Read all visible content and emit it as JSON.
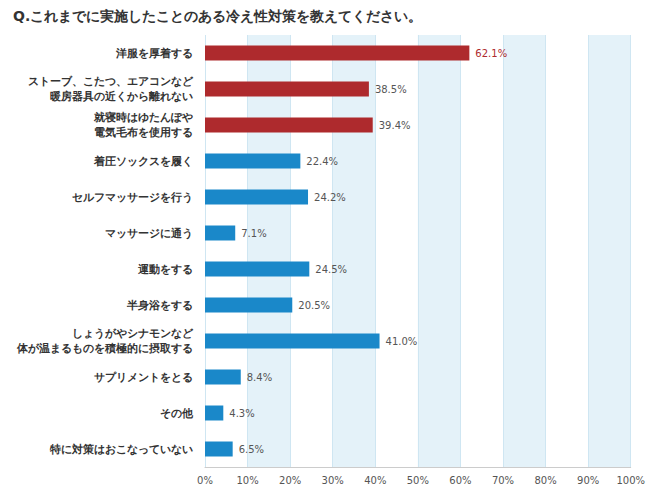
{
  "chart_data": {
    "type": "bar",
    "orientation": "horizontal",
    "title": "Q.これまでに実施したことのある冷え性対策を教えてください。",
    "categories": [
      "洋服を厚着する",
      "ストーブ、こたつ、エアコンなど\n暖房器具の近くから離れない",
      "就寝時はゆたんぽや\n電気毛布を使用する",
      "着圧ソックスを履く",
      "セルフマッサージを行う",
      "マッサージに通う",
      "運動をする",
      "半身浴をする",
      "しょうがやシナモンなど\n体が温まるものを積極的に摂取する",
      "サプリメントをとる",
      "その他",
      "特に対策はおこなっていない"
    ],
    "values": [
      62.1,
      38.5,
      39.4,
      22.4,
      24.2,
      7.1,
      24.5,
      20.5,
      41.0,
      8.4,
      4.3,
      6.5
    ],
    "value_labels": [
      "62.1%",
      "38.5%",
      "39.4%",
      "22.4%",
      "24.2%",
      "7.1%",
      "24.5%",
      "20.5%",
      "41.0%",
      "8.4%",
      "4.3%",
      "6.5%"
    ],
    "colors": [
      "#ae2a2d",
      "#ae2a2d",
      "#ae2a2d",
      "#1a88c9",
      "#1a88c9",
      "#1a88c9",
      "#1a88c9",
      "#1a88c9",
      "#1a88c9",
      "#1a88c9",
      "#1a88c9",
      "#1a88c9"
    ],
    "xlim": [
      0,
      100
    ],
    "xticks": [
      {
        "value": 0,
        "label": "0%"
      },
      {
        "value": 10,
        "label": "10%"
      },
      {
        "value": 20,
        "label": "20%"
      },
      {
        "value": 30,
        "label": "30%"
      },
      {
        "value": 40,
        "label": "40%"
      },
      {
        "value": 50,
        "label": "50%"
      },
      {
        "value": 60,
        "label": "60%"
      },
      {
        "value": 70,
        "label": "70%"
      },
      {
        "value": 80,
        "label": "80%"
      },
      {
        "value": 90,
        "label": "90%"
      },
      {
        "value": 100,
        "label": "100%"
      }
    ],
    "grid": true,
    "data_labels": true
  }
}
